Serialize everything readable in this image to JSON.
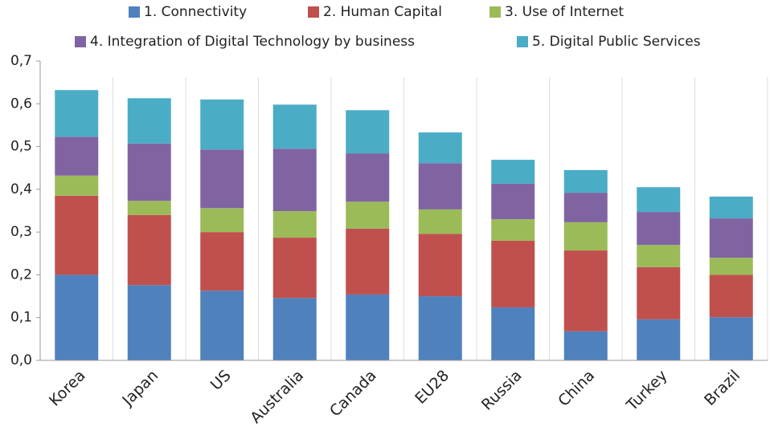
{
  "chart_data": {
    "type": "stacked-bar",
    "categories": [
      "Korea",
      "Japan",
      "US",
      "Australia",
      "Canada",
      "EU28",
      "Russia",
      "China",
      "Turkey",
      "Brazil"
    ],
    "series": [
      {
        "name": "1. Connectivity",
        "color": "#4f81bd",
        "values": [
          0.2,
          0.176,
          0.163,
          0.146,
          0.154,
          0.15,
          0.124,
          0.068,
          0.096,
          0.101
        ]
      },
      {
        "name": "2. Human Capital",
        "color": "#c0504d",
        "values": [
          0.185,
          0.164,
          0.137,
          0.141,
          0.154,
          0.146,
          0.156,
          0.189,
          0.122,
          0.099
        ]
      },
      {
        "name": "3. Use of Internet",
        "color": "#9bbb59",
        "values": [
          0.047,
          0.033,
          0.056,
          0.062,
          0.063,
          0.057,
          0.05,
          0.066,
          0.052,
          0.04
        ]
      },
      {
        "name": "4. Integration of Digital Technology by business",
        "color": "#8064a2",
        "values": [
          0.091,
          0.134,
          0.137,
          0.146,
          0.113,
          0.108,
          0.083,
          0.069,
          0.077,
          0.092
        ]
      },
      {
        "name": "5. Digital Public Services",
        "color": "#4bacc6",
        "values": [
          0.109,
          0.106,
          0.117,
          0.103,
          0.101,
          0.072,
          0.056,
          0.053,
          0.058,
          0.051
        ]
      }
    ],
    "ylim": [
      0,
      0.7
    ],
    "yticks": [
      {
        "value": 0,
        "label": "0,0"
      },
      {
        "value": 0.1,
        "label": "0,1"
      },
      {
        "value": 0.2,
        "label": "0,2"
      },
      {
        "value": 0.3,
        "label": "0,3"
      },
      {
        "value": 0.4,
        "label": "0,4"
      },
      {
        "value": 0.5,
        "label": "0,5"
      },
      {
        "value": 0.6,
        "label": "0,6"
      },
      {
        "value": 0.7,
        "label": "0,7"
      }
    ]
  }
}
